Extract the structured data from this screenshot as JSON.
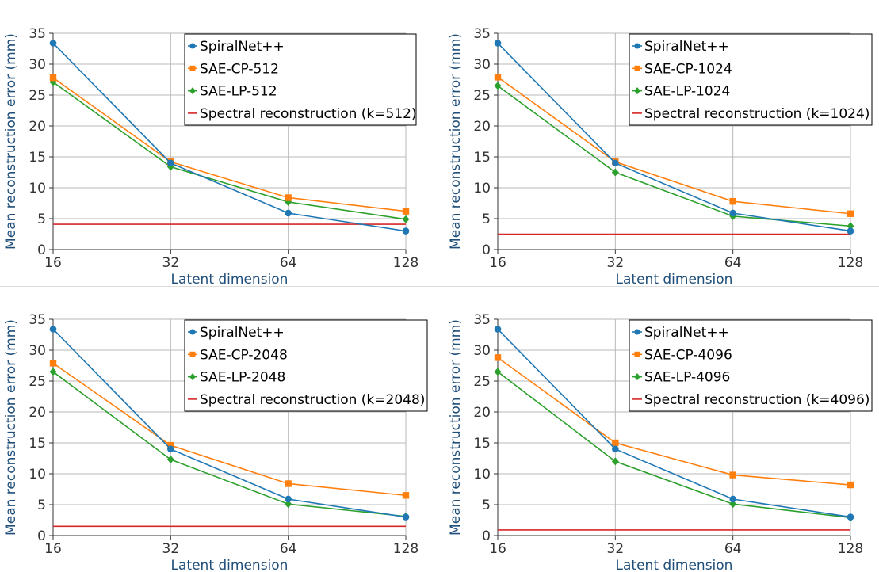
{
  "chart_data": [
    {
      "type": "line",
      "xlabel": "Latent dimension",
      "ylabel": "Mean reconstruction error (mm)",
      "x": [
        16,
        32,
        64,
        128
      ],
      "x_scale": "log2",
      "ylim": [
        0,
        35
      ],
      "yticks": [
        0,
        5,
        10,
        15,
        20,
        25,
        30,
        35
      ],
      "grid": true,
      "legend_position": "top-right",
      "series": [
        {
          "name": "SpiralNet++",
          "values": [
            33.4,
            14.0,
            5.9,
            3.0
          ],
          "color": "#1f77b4",
          "marker": "circle"
        },
        {
          "name": "SAE-CP-512",
          "values": [
            27.8,
            14.2,
            8.4,
            6.2
          ],
          "color": "#ff7f0e",
          "marker": "square"
        },
        {
          "name": "SAE-LP-512",
          "values": [
            27.1,
            13.4,
            7.7,
            4.9
          ],
          "color": "#2ca02c",
          "marker": "diamond"
        },
        {
          "name": "Spectral reconstruction (k=512)",
          "values": [
            4.1,
            4.1,
            4.1,
            4.1
          ],
          "color": "#d62728",
          "marker": "none"
        }
      ]
    },
    {
      "type": "line",
      "xlabel": "Latent dimension",
      "ylabel": "Mean reconstruction error (mm)",
      "x": [
        16,
        32,
        64,
        128
      ],
      "x_scale": "log2",
      "ylim": [
        0,
        35
      ],
      "yticks": [
        0,
        5,
        10,
        15,
        20,
        25,
        30,
        35
      ],
      "grid": true,
      "legend_position": "top-right",
      "series": [
        {
          "name": "SpiralNet++",
          "values": [
            33.4,
            14.0,
            5.9,
            3.0
          ],
          "color": "#1f77b4",
          "marker": "circle"
        },
        {
          "name": "SAE-CP-1024",
          "values": [
            27.9,
            14.2,
            7.8,
            5.8
          ],
          "color": "#ff7f0e",
          "marker": "square"
        },
        {
          "name": "SAE-LP-1024",
          "values": [
            26.5,
            12.5,
            5.4,
            3.8
          ],
          "color": "#2ca02c",
          "marker": "diamond"
        },
        {
          "name": "Spectral reconstruction (k=1024)",
          "values": [
            2.5,
            2.5,
            2.5,
            2.5
          ],
          "color": "#d62728",
          "marker": "none"
        }
      ]
    },
    {
      "type": "line",
      "xlabel": "Latent dimension",
      "ylabel": "Mean reconstruction error (mm)",
      "x": [
        16,
        32,
        64,
        128
      ],
      "x_scale": "log2",
      "ylim": [
        0,
        35
      ],
      "yticks": [
        0,
        5,
        10,
        15,
        20,
        25,
        30,
        35
      ],
      "grid": true,
      "legend_position": "top-right",
      "series": [
        {
          "name": "SpiralNet++",
          "values": [
            33.4,
            14.0,
            5.9,
            3.0
          ],
          "color": "#1f77b4",
          "marker": "circle"
        },
        {
          "name": "SAE-CP-2048",
          "values": [
            27.9,
            14.6,
            8.4,
            6.5
          ],
          "color": "#ff7f0e",
          "marker": "square"
        },
        {
          "name": "SAE-LP-2048",
          "values": [
            26.5,
            12.3,
            5.1,
            3.1
          ],
          "color": "#2ca02c",
          "marker": "diamond"
        },
        {
          "name": "Spectral reconstruction (k=2048)",
          "values": [
            1.5,
            1.5,
            1.5,
            1.5
          ],
          "color": "#d62728",
          "marker": "none"
        }
      ]
    },
    {
      "type": "line",
      "xlabel": "Latent dimension",
      "ylabel": "Mean reconstruction error (mm)",
      "x": [
        16,
        32,
        64,
        128
      ],
      "x_scale": "log2",
      "ylim": [
        0,
        35
      ],
      "yticks": [
        0,
        5,
        10,
        15,
        20,
        25,
        30,
        35
      ],
      "grid": true,
      "legend_position": "top-right",
      "series": [
        {
          "name": "SpiralNet++",
          "values": [
            33.4,
            14.0,
            5.9,
            3.0
          ],
          "color": "#1f77b4",
          "marker": "circle"
        },
        {
          "name": "SAE-CP-4096",
          "values": [
            28.8,
            15.0,
            9.8,
            8.2
          ],
          "color": "#ff7f0e",
          "marker": "square"
        },
        {
          "name": "SAE-LP-4096",
          "values": [
            26.5,
            12.0,
            5.1,
            2.9
          ],
          "color": "#2ca02c",
          "marker": "diamond"
        },
        {
          "name": "Spectral reconstruction (k=4096)",
          "values": [
            0.9,
            0.9,
            0.9,
            0.9
          ],
          "color": "#d62728",
          "marker": "none"
        }
      ]
    }
  ]
}
